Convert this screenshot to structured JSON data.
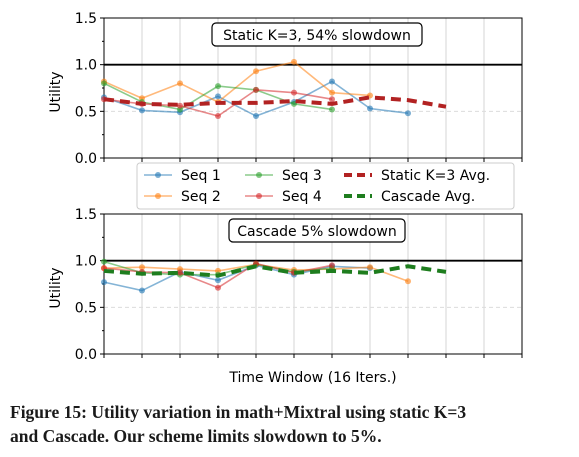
{
  "caption": {
    "line1": "Figure 15: Utility variation in math+Mixtral using static K=3",
    "line2": "and Cascade. Our scheme limits slowdown to 5%."
  },
  "legend": {
    "entries": [
      "Seq 1",
      "Seq 2",
      "Seq 3",
      "Seq 4",
      "Static K=3 Avg.",
      "Cascade Avg."
    ]
  },
  "chart_data": [
    {
      "type": "line",
      "title": "Static K=3, 54% slowdown",
      "xlabel": "",
      "ylabel": "Utility",
      "ylim": [
        0,
        1.5
      ],
      "yticks": [
        "0.0",
        "0.5",
        "1.0",
        "1.5"
      ],
      "xlim": [
        0,
        11
      ],
      "reference_line": 1.0,
      "grid": true,
      "series": [
        {
          "name": "Seq 1",
          "color": "#1f77b4",
          "style": "marker",
          "x": [
            0,
            1,
            2,
            3,
            4,
            5,
            6,
            7,
            8
          ],
          "y": [
            0.65,
            0.51,
            0.49,
            0.66,
            0.45,
            0.6,
            0.82,
            0.53,
            0.48
          ]
        },
        {
          "name": "Seq 2",
          "color": "#ff7f0e",
          "style": "marker",
          "x": [
            0,
            1,
            2,
            3,
            4,
            5,
            6,
            7
          ],
          "y": [
            0.82,
            0.64,
            0.8,
            0.6,
            0.93,
            1.03,
            0.7,
            0.67
          ]
        },
        {
          "name": "Seq 3",
          "color": "#2ca02c",
          "style": "marker",
          "x": [
            0,
            1,
            2,
            3,
            4,
            5,
            6
          ],
          "y": [
            0.8,
            0.6,
            0.52,
            0.77,
            0.73,
            0.58,
            0.52
          ]
        },
        {
          "name": "Seq 4",
          "color": "#d62728",
          "style": "marker",
          "x": [
            0,
            1,
            2,
            3,
            4,
            5,
            6
          ],
          "y": [
            0.63,
            0.58,
            0.56,
            0.45,
            0.73,
            0.7,
            0.63
          ]
        },
        {
          "name": "Static K=3 Avg.",
          "color": "#b22222",
          "style": "dashed",
          "x": [
            0,
            1,
            2,
            3,
            4,
            5,
            6,
            7,
            8,
            9
          ],
          "y": [
            0.63,
            0.58,
            0.57,
            0.59,
            0.59,
            0.61,
            0.58,
            0.65,
            0.62,
            0.55
          ]
        }
      ]
    },
    {
      "type": "line",
      "title": "Cascade 5% slowdown",
      "xlabel": "Time Window (16 Iters.)",
      "ylabel": "Utility",
      "ylim": [
        0,
        1.5
      ],
      "yticks": [
        "0.0",
        "0.5",
        "1.0",
        "1.5"
      ],
      "xlim": [
        0,
        11
      ],
      "reference_line": 1.0,
      "grid": true,
      "series": [
        {
          "name": "Seq 1",
          "color": "#1f77b4",
          "style": "marker",
          "x": [
            0,
            1,
            2,
            3,
            4,
            5,
            6,
            7
          ],
          "y": [
            0.77,
            0.68,
            0.88,
            0.79,
            0.95,
            0.85,
            0.94,
            0.92
          ]
        },
        {
          "name": "Seq 2",
          "color": "#ff7f0e",
          "style": "marker",
          "x": [
            0,
            1,
            2,
            3,
            4,
            5,
            6,
            7,
            8
          ],
          "y": [
            0.92,
            0.93,
            0.91,
            0.89,
            0.96,
            0.9,
            0.91,
            0.93,
            0.78
          ]
        },
        {
          "name": "Seq 3",
          "color": "#2ca02c",
          "style": "marker",
          "x": [
            0,
            1,
            2,
            3,
            4,
            5,
            6
          ],
          "y": [
            0.99,
            0.87,
            0.85,
            0.85,
            0.96,
            0.88,
            0.92
          ]
        },
        {
          "name": "Seq 4",
          "color": "#d62728",
          "style": "marker",
          "x": [
            0,
            1,
            2,
            3,
            4,
            5,
            6
          ],
          "y": [
            0.92,
            0.88,
            0.87,
            0.71,
            0.97,
            0.87,
            0.95
          ]
        },
        {
          "name": "Cascade Avg.",
          "color": "#1e7d1e",
          "style": "dashed",
          "x": [
            0,
            1,
            2,
            3,
            4,
            5,
            6,
            7,
            8,
            9
          ],
          "y": [
            0.89,
            0.86,
            0.87,
            0.84,
            0.94,
            0.87,
            0.89,
            0.87,
            0.94,
            0.88
          ]
        }
      ]
    }
  ]
}
